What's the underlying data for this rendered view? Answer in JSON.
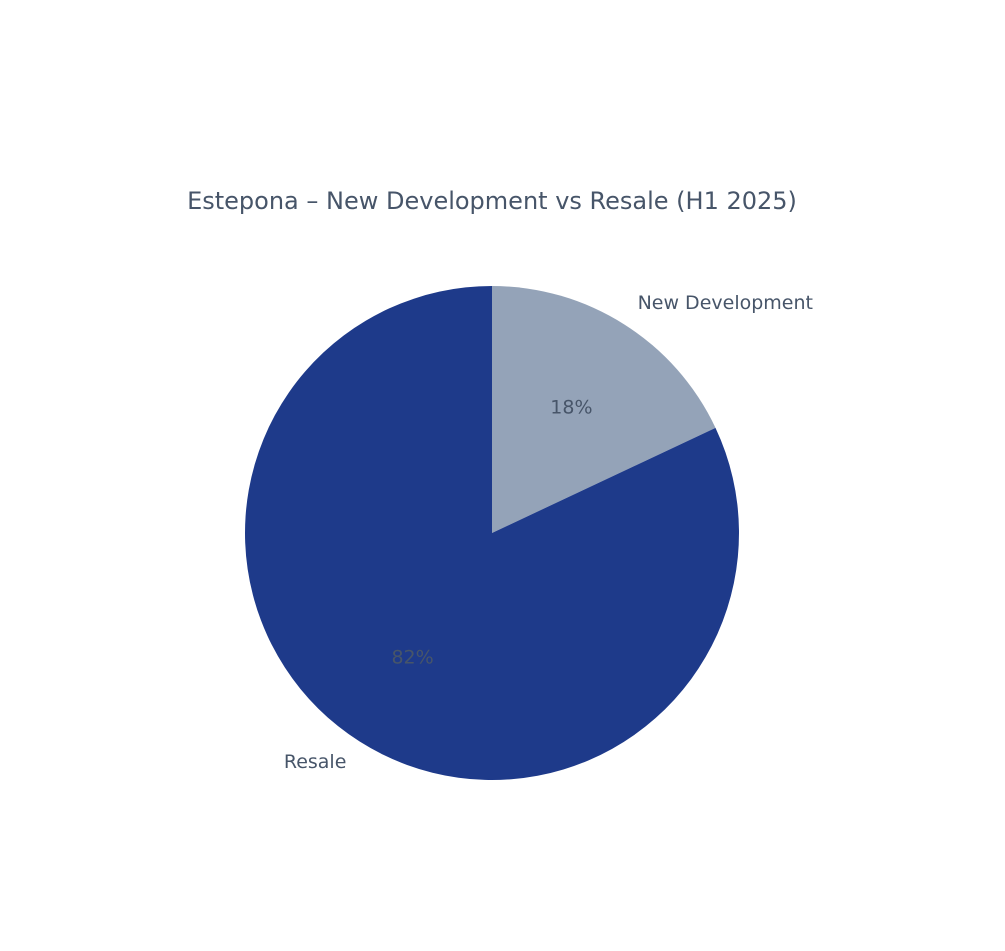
{
  "chart_data": {
    "type": "pie",
    "title": "Estepona – New Development vs Resale (H1 2025)",
    "categories": [
      "New Development",
      "Resale"
    ],
    "values": [
      18,
      82
    ],
    "value_labels": [
      "18%",
      "82%"
    ],
    "colors": [
      "#94a3b8",
      "#1e3a8a"
    ]
  }
}
